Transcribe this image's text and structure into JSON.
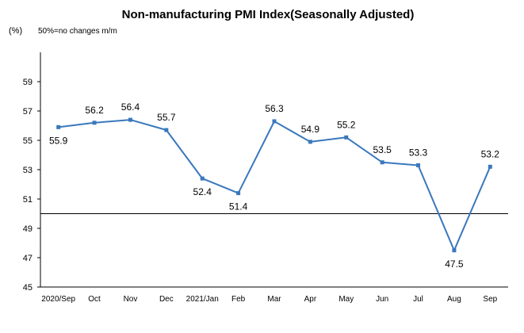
{
  "chart_data": {
    "type": "line",
    "title": "Non-manufacturing PMI Index(Seasonally Adjusted)",
    "ylabel": "(%)",
    "note": "50%=no changes  m/m",
    "categories": [
      "2020/Sep",
      "Oct",
      "Nov",
      "Dec",
      "2021/Jan",
      "Feb",
      "Mar",
      "Apr",
      "May",
      "Jun",
      "Jul",
      "Aug",
      "Sep"
    ],
    "values": [
      55.9,
      56.2,
      56.4,
      55.7,
      52.4,
      51.4,
      56.3,
      54.9,
      55.2,
      53.5,
      53.3,
      47.5,
      53.2
    ],
    "data_labels": [
      "55.9",
      "56.2",
      "56.4",
      "55.7",
      "52.4",
      "51.4",
      "56.3",
      "54.9",
      "55.2",
      "53.5",
      "53.3",
      "47.5",
      "53.2"
    ],
    "yticks": [
      "45",
      "47",
      "49",
      "51",
      "53",
      "55",
      "57",
      "59"
    ],
    "ylim": [
      45,
      61
    ],
    "reference_line": 50,
    "grid": false,
    "legend": "none",
    "line_color": "#3a78bd"
  }
}
